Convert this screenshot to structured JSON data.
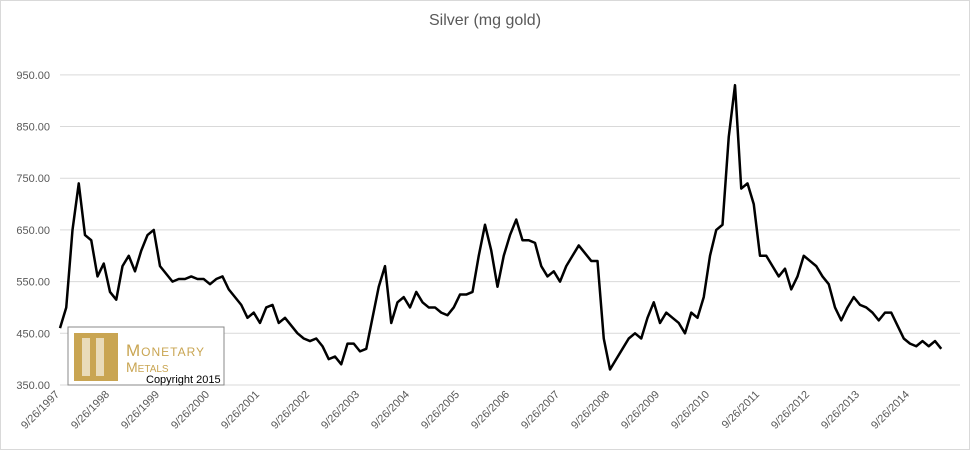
{
  "chart_data": {
    "type": "line",
    "title": "Silver (mg gold)",
    "categories": [
      "9/26/1997",
      null,
      null,
      null,
      null,
      null,
      null,
      null,
      "9/26/1998",
      null,
      null,
      null,
      null,
      null,
      null,
      null,
      "9/26/1999",
      null,
      null,
      null,
      null,
      null,
      null,
      null,
      "9/26/2000",
      null,
      null,
      null,
      null,
      null,
      null,
      null,
      "9/26/2001",
      null,
      null,
      null,
      null,
      null,
      null,
      null,
      "9/26/2002",
      null,
      null,
      null,
      null,
      null,
      null,
      null,
      "9/26/2003",
      null,
      null,
      null,
      null,
      null,
      null,
      null,
      "9/26/2004",
      null,
      null,
      null,
      null,
      null,
      null,
      null,
      "9/26/2005",
      null,
      null,
      null,
      null,
      null,
      null,
      null,
      "9/26/2006",
      null,
      null,
      null,
      null,
      null,
      null,
      null,
      "9/26/2007",
      null,
      null,
      null,
      null,
      null,
      null,
      null,
      "9/26/2008",
      null,
      null,
      null,
      null,
      null,
      null,
      null,
      "9/26/2009",
      null,
      null,
      null,
      null,
      null,
      null,
      null,
      "9/26/2010",
      null,
      null,
      null,
      null,
      null,
      null,
      null,
      "9/26/2011",
      null,
      null,
      null,
      null,
      null,
      null,
      null,
      "9/26/2012",
      null,
      null,
      null,
      null,
      null,
      null,
      null,
      "9/26/2013",
      null,
      null,
      null,
      null,
      null,
      null,
      null,
      "9/26/2014",
      null,
      null,
      null,
      null,
      null
    ],
    "values": [
      460,
      500,
      650,
      740,
      640,
      630,
      560,
      585,
      530,
      515,
      580,
      600,
      570,
      610,
      640,
      650,
      580,
      565,
      550,
      555,
      555,
      560,
      555,
      555,
      545,
      555,
      560,
      535,
      520,
      505,
      480,
      490,
      470,
      500,
      505,
      470,
      480,
      465,
      450,
      440,
      435,
      440,
      425,
      400,
      405,
      390,
      430,
      430,
      415,
      420,
      480,
      540,
      580,
      470,
      510,
      520,
      500,
      530,
      510,
      500,
      500,
      490,
      485,
      500,
      525,
      525,
      530,
      600,
      660,
      610,
      540,
      600,
      640,
      670,
      630,
      630,
      625,
      580,
      560,
      570,
      550,
      580,
      600,
      620,
      605,
      590,
      590,
      440,
      380,
      400,
      420,
      440,
      450,
      440,
      480,
      510,
      470,
      490,
      480,
      470,
      450,
      490,
      480,
      520,
      600,
      650,
      660,
      830,
      930,
      730,
      740,
      700,
      600,
      600,
      580,
      560,
      575,
      535,
      560,
      600,
      590,
      580,
      560,
      545,
      500,
      475,
      500,
      520,
      505,
      500,
      490,
      475,
      490,
      490,
      465,
      440,
      430,
      425,
      435,
      425,
      435,
      420
    ],
    "color": "#000000",
    "ylim": [
      350,
      1000
    ],
    "yticks": [
      {
        "value": 350,
        "label": "350.00"
      },
      {
        "value": 450,
        "label": "450.00"
      },
      {
        "value": 550,
        "label": "550.00"
      },
      {
        "value": 650,
        "label": "650.00"
      },
      {
        "value": 750,
        "label": "750.00"
      },
      {
        "value": 850,
        "label": "850.00"
      },
      {
        "value": 950,
        "label": "950.00"
      }
    ],
    "grid": true,
    "logo": {
      "name1": "Monetary",
      "name2": "Metals",
      "copyright": "Copyright 2015"
    }
  }
}
